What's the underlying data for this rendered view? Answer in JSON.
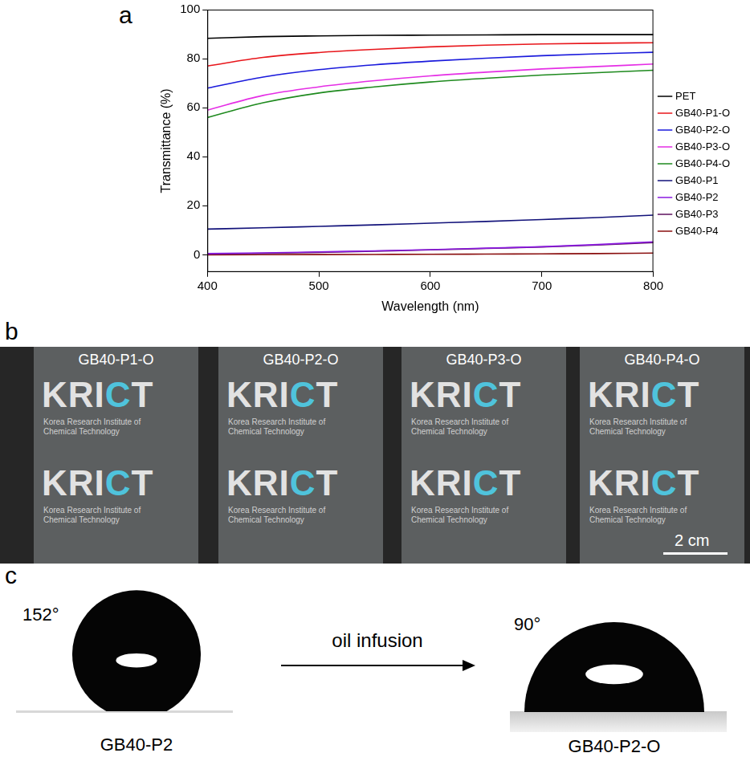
{
  "panel_labels": [
    "a",
    "b",
    "c"
  ],
  "chart_data": {
    "type": "line",
    "x_label": "Wavelength (nm)",
    "y_label": "Transmittance (%)",
    "x": [
      400,
      450,
      500,
      550,
      600,
      650,
      700,
      750,
      800
    ],
    "xlim": [
      400,
      800
    ],
    "xticks": [
      400,
      500,
      600,
      700,
      800
    ],
    "ylim": [
      -7,
      100
    ],
    "yticks": [
      0,
      20,
      40,
      60,
      80,
      100
    ],
    "grid": false,
    "legend": "right",
    "series": [
      {
        "name": "PET",
        "color": "#000000",
        "values": [
          88.3,
          89.0,
          89.3,
          89.5,
          89.6,
          89.7,
          89.8,
          89.8,
          89.8
        ]
      },
      {
        "name": "GB40-P1-O",
        "color": "#e8161b",
        "values": [
          77.0,
          80.5,
          82.5,
          83.8,
          84.8,
          85.5,
          86.0,
          86.3,
          86.5
        ]
      },
      {
        "name": "GB40-P2-O",
        "color": "#1a1adc",
        "values": [
          68.0,
          72.5,
          75.5,
          77.5,
          79.0,
          80.2,
          81.2,
          82.0,
          82.6
        ]
      },
      {
        "name": "GB40-P3-O",
        "color": "#e52ee5",
        "values": [
          59.0,
          65.0,
          68.5,
          71.0,
          73.0,
          74.5,
          75.8,
          76.8,
          77.8
        ]
      },
      {
        "name": "GB40-P4-O",
        "color": "#1e8a1e",
        "values": [
          56.0,
          62.0,
          66.0,
          68.5,
          70.5,
          72.0,
          73.3,
          74.3,
          75.3
        ]
      },
      {
        "name": "GB40-P1",
        "color": "#12127a",
        "values": [
          10.5,
          11.0,
          11.6,
          12.2,
          12.9,
          13.6,
          14.4,
          15.2,
          16.2
        ]
      },
      {
        "name": "GB40-P2",
        "color": "#8a1ae0",
        "values": [
          0.5,
          0.8,
          1.2,
          1.6,
          2.1,
          2.7,
          3.3,
          4.2,
          5.3
        ]
      },
      {
        "name": "GB40-P3",
        "color": "#5e125e",
        "values": [
          0.3,
          0.6,
          1.0,
          1.5,
          2.0,
          2.6,
          3.2,
          4.0,
          5.0
        ]
      },
      {
        "name": "GB40-P4",
        "color": "#8a0f0f",
        "values": [
          0.0,
          0.05,
          0.1,
          0.15,
          0.2,
          0.3,
          0.4,
          0.5,
          0.7
        ]
      }
    ]
  },
  "photo_strip": {
    "samples": [
      "GB40-P1-O",
      "GB40-P2-O",
      "GB40-P3-O",
      "GB40-P4-O"
    ],
    "logo_text": "KRICT",
    "logo_caption": "Korea Research Institute of Chemical Technology",
    "scale_bar": "2 cm"
  },
  "contact_angle": {
    "before": {
      "sample": "GB40-P2",
      "angle": 152,
      "angle_label": "152°"
    },
    "process": "oil infusion",
    "after": {
      "sample": "GB40-P2-O",
      "angle": 90,
      "angle_label": "90°"
    }
  }
}
